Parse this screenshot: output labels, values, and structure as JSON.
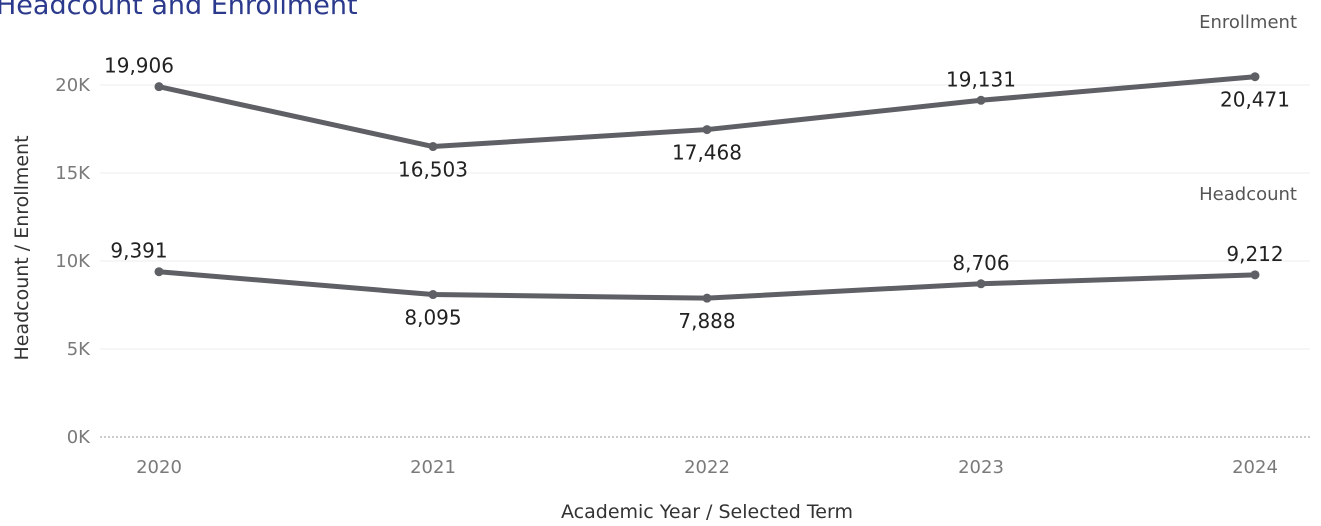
{
  "chart_data": {
    "type": "line",
    "title": "Headcount and Enrollment",
    "xlabel": "Academic Year / Selected Term",
    "ylabel": "Headcount / Enrollment",
    "categories": [
      "2020",
      "2021",
      "2022",
      "2023",
      "2024"
    ],
    "y_ticks": [
      "0K",
      "5K",
      "10K",
      "15K",
      "20K"
    ],
    "y_tick_values": [
      0,
      5000,
      10000,
      15000,
      20000
    ],
    "ylim": [
      0,
      22500
    ],
    "grid": true,
    "series": [
      {
        "name": "Enrollment",
        "values": [
          19906,
          16503,
          17468,
          19131,
          20471
        ],
        "labels": [
          "19,906",
          "16,503",
          "17,468",
          "19,131",
          "20,471"
        ],
        "label_side": [
          "above",
          "below",
          "below",
          "above",
          "below"
        ]
      },
      {
        "name": "Headcount",
        "values": [
          9391,
          8095,
          7888,
          8706,
          9212
        ],
        "labels": [
          "9,391",
          "8,095",
          "7,888",
          "8,706",
          "9,212"
        ],
        "label_side": [
          "above",
          "below",
          "below",
          "above",
          "above"
        ]
      }
    ],
    "line_color": "#5f6066"
  }
}
